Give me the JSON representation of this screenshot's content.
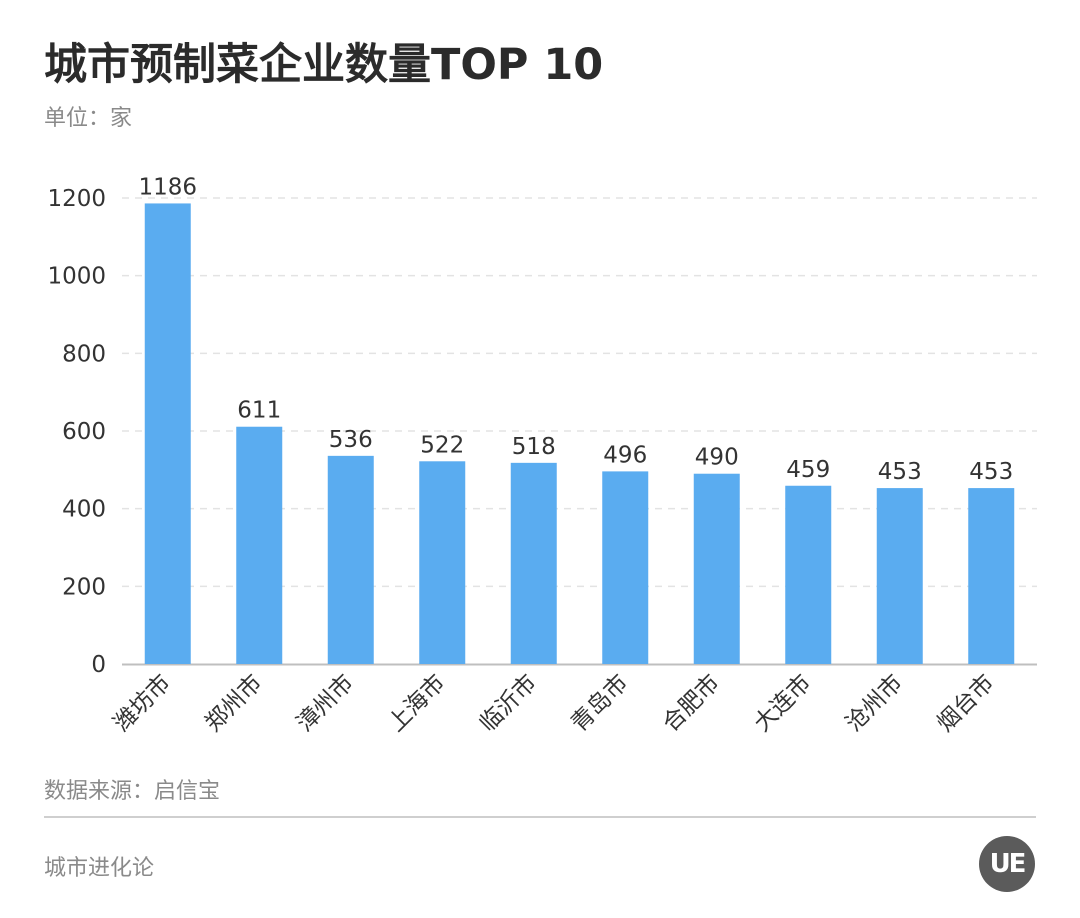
{
  "header": {
    "title": "城市预制菜企业数量TOP 10",
    "unit": "单位：家"
  },
  "footer": {
    "source": "数据来源：启信宝",
    "brand": "城市进化论",
    "logo_text": "UE"
  },
  "colors": {
    "bar": "#5aacf0",
    "grid": "#e3e3e3",
    "axis": "#bfbfbf",
    "tick_text": "#333333",
    "title_text": "#2b2b2b",
    "muted_text": "#8a8a8a"
  },
  "chart_data": {
    "type": "bar",
    "title": "城市预制菜企业数量TOP 10",
    "ylabel": "单位：家",
    "categories": [
      "潍坊市",
      "郑州市",
      "漳州市",
      "上海市",
      "临沂市",
      "青岛市",
      "合肥市",
      "大连市",
      "沧州市",
      "烟台市"
    ],
    "values": [
      1186,
      611,
      536,
      522,
      518,
      496,
      490,
      459,
      453,
      453
    ],
    "ylim": [
      0,
      1200
    ],
    "yticks": [
      0,
      200,
      400,
      600,
      800,
      1000,
      1200
    ],
    "grid": true,
    "data_labels": true
  }
}
